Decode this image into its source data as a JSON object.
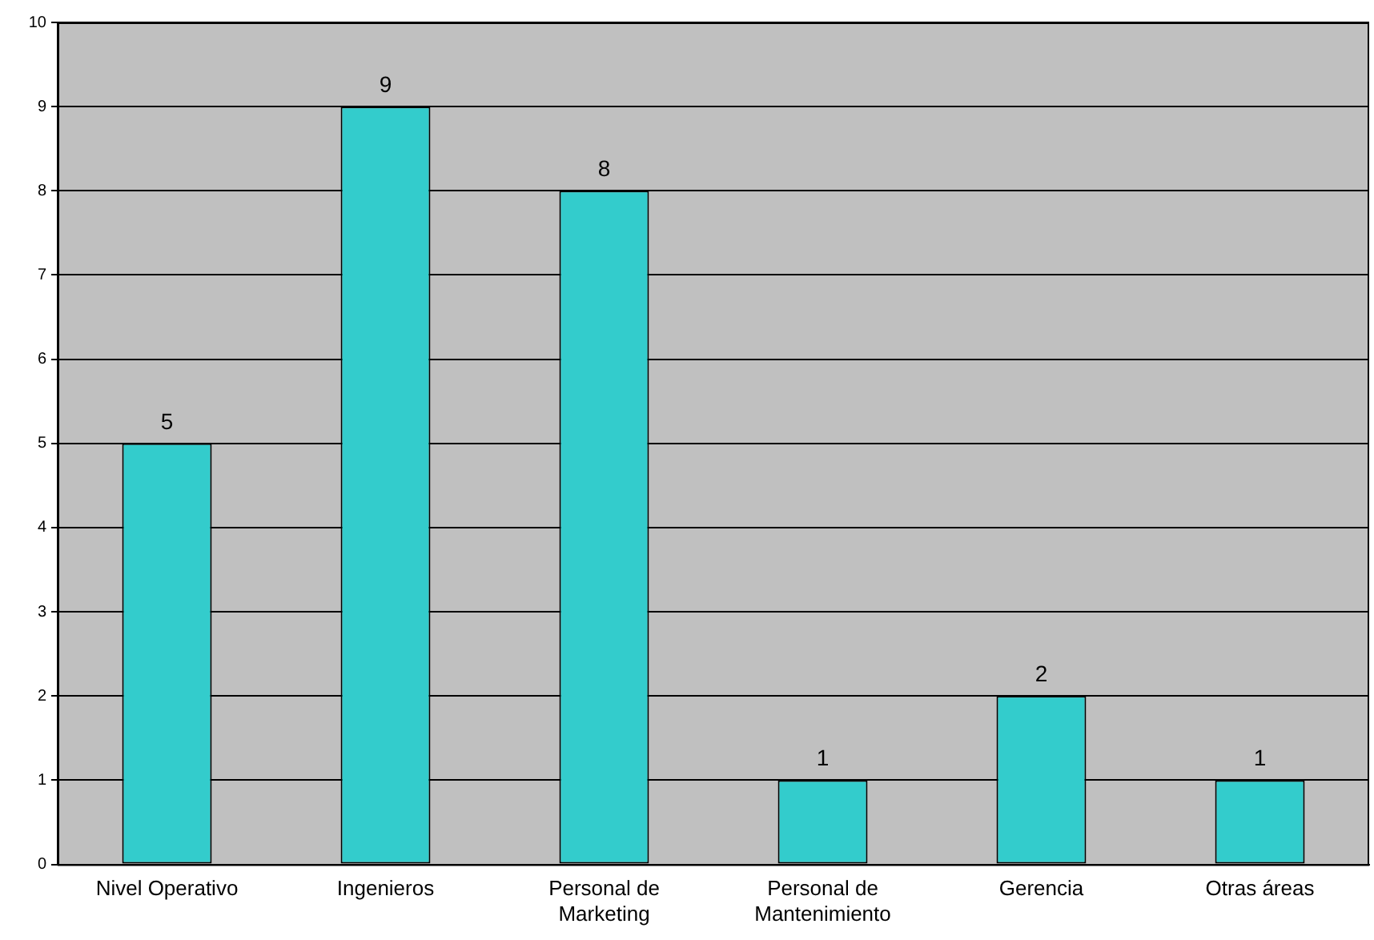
{
  "chart_data": {
    "type": "bar",
    "categories": [
      "Nivel Operativo",
      "Ingenieros",
      "Personal de Marketing",
      "Personal de Mantenimiento",
      "Gerencia",
      "Otras áreas"
    ],
    "values": [
      5,
      9,
      8,
      1,
      2,
      1
    ],
    "color": "#33cccc",
    "ylim": [
      0,
      10
    ],
    "yticks": [
      0,
      1,
      2,
      3,
      4,
      5,
      6,
      7,
      8,
      9,
      10
    ],
    "grid": "y",
    "data_labels": true
  }
}
